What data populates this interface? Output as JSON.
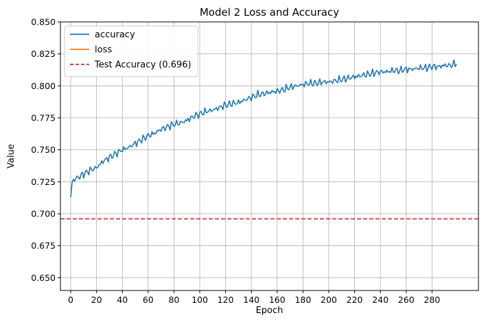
{
  "chart_data": {
    "type": "line",
    "title": "Model 2 Loss and Accuracy",
    "xlabel": "Epoch",
    "ylabel": "Value",
    "xlim": [
      -8,
      316
    ],
    "ylim": [
      0.64,
      0.85
    ],
    "xticks": [
      0,
      20,
      40,
      60,
      80,
      100,
      120,
      140,
      160,
      180,
      200,
      220,
      240,
      260,
      280
    ],
    "yticks": [
      0.65,
      0.675,
      0.7,
      0.725,
      0.75,
      0.775,
      0.8,
      0.825,
      0.85
    ],
    "grid": true,
    "legend_position": "top-left",
    "series": [
      {
        "name": "accuracy",
        "color": "#1f77b4",
        "x": [
          0,
          1,
          2,
          5,
          10,
          15,
          20,
          25,
          30,
          35,
          40,
          45,
          50,
          55,
          60,
          65,
          70,
          75,
          80,
          85,
          90,
          95,
          100,
          105,
          110,
          115,
          120,
          125,
          130,
          135,
          140,
          145,
          150,
          155,
          160,
          165,
          170,
          175,
          180,
          185,
          190,
          195,
          200,
          205,
          210,
          215,
          220,
          225,
          230,
          235,
          240,
          245,
          250,
          255,
          260,
          265,
          270,
          275,
          280,
          285,
          290,
          295,
          299
        ],
        "values": [
          0.713,
          0.724,
          0.727,
          0.728,
          0.731,
          0.734,
          0.736,
          0.741,
          0.744,
          0.747,
          0.75,
          0.752,
          0.755,
          0.758,
          0.761,
          0.763,
          0.766,
          0.768,
          0.77,
          0.771,
          0.773,
          0.776,
          0.778,
          0.78,
          0.781,
          0.783,
          0.785,
          0.786,
          0.787,
          0.789,
          0.791,
          0.793,
          0.794,
          0.795,
          0.796,
          0.797,
          0.799,
          0.8,
          0.801,
          0.802,
          0.802,
          0.803,
          0.803,
          0.804,
          0.805,
          0.806,
          0.807,
          0.808,
          0.809,
          0.81,
          0.811,
          0.811,
          0.812,
          0.812,
          0.813,
          0.813,
          0.814,
          0.814,
          0.815,
          0.815,
          0.816,
          0.816,
          0.818
        ]
      },
      {
        "name": "loss",
        "color": "#ff7f0e",
        "x": [],
        "values": []
      }
    ],
    "reference_lines": [
      {
        "name": "Test Accuracy (0.696)",
        "value": 0.696,
        "color": "#d62728",
        "style": "dashed"
      }
    ]
  }
}
